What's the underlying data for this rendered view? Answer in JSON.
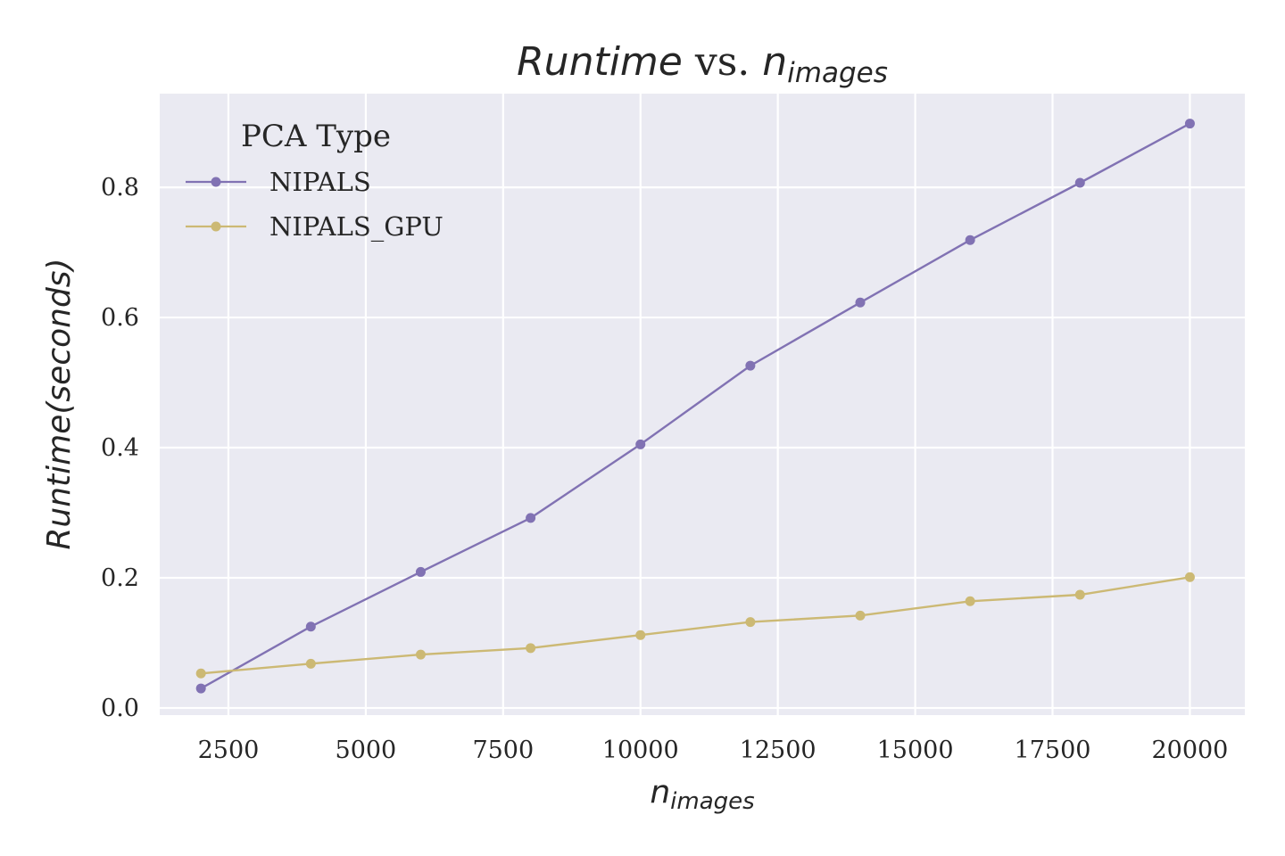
{
  "chart_data": {
    "type": "line",
    "title": {
      "main": "Runtime",
      "vs": " vs. ",
      "var": "n",
      "sub": "images"
    },
    "xlabel": {
      "var": "n",
      "sub": "images"
    },
    "ylabel": "Runtime(seconds)",
    "x": [
      2000,
      4000,
      6000,
      8000,
      10000,
      12000,
      14000,
      16000,
      18000,
      20000
    ],
    "series": [
      {
        "name": "NIPALS",
        "color": "#8172b3",
        "values": [
          0.03,
          0.125,
          0.209,
          0.292,
          0.405,
          0.526,
          0.623,
          0.719,
          0.807,
          0.898
        ]
      },
      {
        "name": "NIPALS_GPU",
        "color": "#ccb974",
        "values": [
          0.053,
          0.068,
          0.082,
          0.092,
          0.112,
          0.132,
          0.142,
          0.164,
          0.174,
          0.201
        ]
      }
    ],
    "xlim": [
      1250,
      21000
    ],
    "ylim": [
      -0.011,
      0.944
    ],
    "xticks": [
      2500,
      5000,
      7500,
      10000,
      12500,
      15000,
      17500,
      20000
    ],
    "yticks": [
      0.0,
      0.2,
      0.4,
      0.6,
      0.8
    ],
    "ytick_labels": [
      "0.0",
      "0.2",
      "0.4",
      "0.6",
      "0.8"
    ],
    "legend": {
      "title": "PCA Type",
      "placement": "upper-left"
    },
    "grid": true,
    "background_color": "#eaeaf2",
    "grid_color": "#ffffff"
  }
}
